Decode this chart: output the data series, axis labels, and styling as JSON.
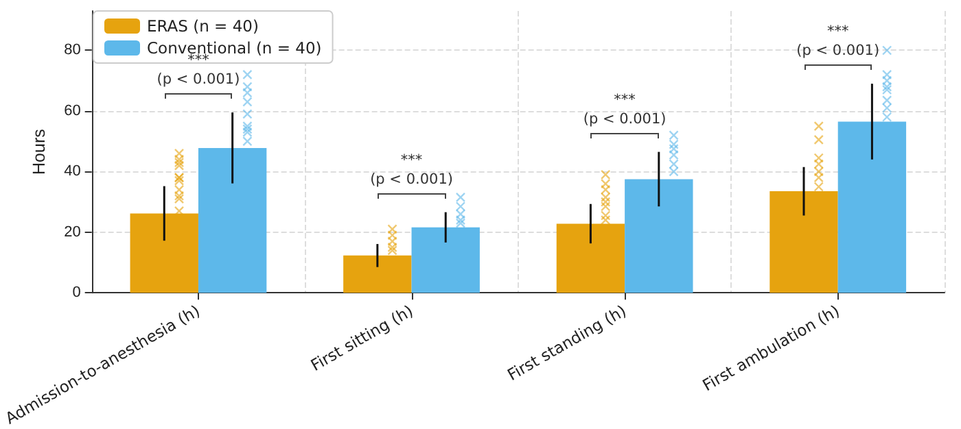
{
  "chart_data": {
    "type": "bar",
    "ylabel": "Hours",
    "categories": [
      "Admission-to-anesthesia (h)",
      "First sitting (h)",
      "First standing (h)",
      "First ambulation (h)"
    ],
    "ylim": [
      0,
      93
    ],
    "yticks": [
      0,
      20,
      40,
      60,
      80
    ],
    "grid": true,
    "legend": "top left",
    "series": [
      {
        "name": "ERAS (n = 40)",
        "color": "#e6a30f",
        "values": [
          26.2,
          12.3,
          22.8,
          33.5
        ],
        "errors": [
          9,
          3.8,
          6.5,
          8
        ]
      },
      {
        "name": "Conventional (n = 40)",
        "color": "#5db8ea",
        "values": [
          47.8,
          21.6,
          37.5,
          56.5
        ],
        "errors": [
          11.7,
          5,
          9,
          12.5
        ]
      },
      {
        "type": "scatter",
        "color": "#e6a30f",
        "marker": "cross",
        "x": [
          "Admission-to-anesthesia (h)",
          "Admission-to-anesthesia (h)",
          "Admission-to-anesthesia (h)",
          "Admission-to-anesthesia (h)",
          "Admission-to-anesthesia (h)",
          "Admission-to-anesthesia (h)",
          "Admission-to-anesthesia (h)",
          "Admission-to-anesthesia (h)",
          "Admission-to-anesthesia (h)",
          "Admission-to-anesthesia (h)",
          "Admission-to-anesthesia (h)",
          "First sitting (h)",
          "First sitting (h)",
          "First sitting (h)",
          "First sitting (h)",
          "First sitting (h)",
          "First standing (h)",
          "First standing (h)",
          "First standing (h)",
          "First standing (h)",
          "First standing (h)",
          "First standing (h)",
          "First standing (h)",
          "First standing (h)",
          "First ambulation (h)",
          "First ambulation (h)",
          "First ambulation (h)",
          "First ambulation (h)",
          "First ambulation (h)",
          "First ambulation (h)",
          "First ambulation (h)"
        ],
        "values": [
          46,
          44,
          43,
          42,
          38,
          38,
          37,
          34,
          32,
          31,
          27,
          21,
          19,
          17,
          15,
          14,
          39,
          36,
          34,
          31.5,
          30,
          28.5,
          25.5,
          24,
          55,
          50.5,
          44.5,
          42.5,
          40,
          38,
          35
        ]
      },
      {
        "type": "scatter",
        "color": "#5db8ea",
        "marker": "cross",
        "x": [
          "Admission-to-anesthesia (h)",
          "Admission-to-anesthesia (h)",
          "Admission-to-anesthesia (h)",
          "Admission-to-anesthesia (h)",
          "Admission-to-anesthesia (h)",
          "Admission-to-anesthesia (h)",
          "Admission-to-anesthesia (h)",
          "Admission-to-anesthesia (h)",
          "Admission-to-anesthesia (h)",
          "First sitting (h)",
          "First sitting (h)",
          "First sitting (h)",
          "First sitting (h)",
          "First sitting (h)",
          "First standing (h)",
          "First standing (h)",
          "First standing (h)",
          "First standing (h)",
          "First standing (h)",
          "First standing (h)",
          "First ambulation (h)",
          "First ambulation (h)",
          "First ambulation (h)",
          "First ambulation (h)",
          "First ambulation (h)",
          "First ambulation (h)",
          "First ambulation (h)",
          "First ambulation (h)"
        ],
        "values": [
          72,
          68,
          66,
          63,
          59,
          55,
          54,
          53,
          50,
          31.5,
          28.5,
          26,
          24,
          23,
          52,
          49,
          47.5,
          45.5,
          42.5,
          40,
          80,
          72,
          70,
          68,
          67,
          63.5,
          61,
          58
        ]
      }
    ],
    "annotations": [
      "***\n(p < 0.001)",
      "***\n(p < 0.001)",
      "***\n(p < 0.001)",
      "***\n(p < 0.001)"
    ]
  }
}
